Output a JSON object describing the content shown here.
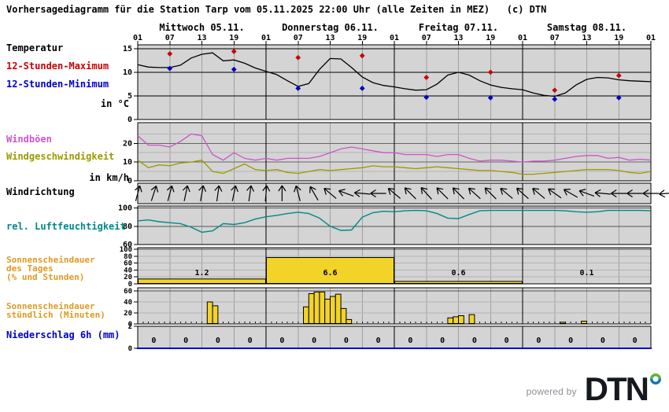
{
  "title": "Vorhersagediagramm für die Station Tarp vom 05.11.2025 22:00 Uhr (alle Zeiten in MEZ)   (c) DTN",
  "footer": {
    "powered_by": "powered by",
    "brand": "DTN"
  },
  "colors": {
    "max_red": "#cc0000",
    "min_blue": "#0000cc",
    "gusts_magenta": "#cc55cc",
    "wind_olive": "#9a9a00",
    "humidity_teal": "#008888",
    "sunshine_orange": "#dd9a22",
    "precip_blue": "#0000cc",
    "bar_yellow": "#f2d328",
    "panel_bg": "#d4d4d4",
    "grid_gray": "#a0a0a0",
    "brand_dark": "#15191e",
    "ring_green": "#5ab431",
    "ring_blue": "#0f75bb",
    "powered_gray": "#8a8f94"
  },
  "labels": {
    "temperatur": "Temperatur",
    "max": "12-Stunden-Maximum",
    "min": "12-Stunden-Minimum",
    "unit_temp": "in °C",
    "gusts": "Windböen",
    "wind": "Windgeschwindigkeit",
    "unit_wind": "in km/h",
    "winddir": "Windrichtung",
    "humidity": "rel. Luftfeuchtigkeit",
    "sun_day_1": "Sonnenscheindauer",
    "sun_day_2": "des Tages",
    "sun_day_3": "(% und Stunden)",
    "sun_hour_1": "Sonnenscheindauer",
    "sun_hour_2": "stündlich (Minuten)",
    "precip": "Niederschlag 6h (mm)"
  },
  "axis": {
    "days": [
      "Mittwoch 05.11.",
      "Donnerstag 06.11.",
      "Freitag 07.11.",
      "Samstag 08.11."
    ],
    "hour_ticks": [
      "01",
      "07",
      "13",
      "19",
      "01",
      "07",
      "13",
      "19",
      "01",
      "07",
      "13",
      "19",
      "01",
      "07",
      "13",
      "19",
      "01"
    ]
  },
  "chart_data": [
    {
      "id": "temperature",
      "type": "line",
      "title": "Temperatur",
      "unit": "°C",
      "ylim": [
        0,
        15.8
      ],
      "y_ticks": [
        15,
        10,
        5,
        0
      ],
      "x_step_hours": 2,
      "series": [
        {
          "name": "Temperatur",
          "color": "#000000",
          "values": [
            11.6,
            11.1,
            11.0,
            11.0,
            11.5,
            13.0,
            13.8,
            14.1,
            12.4,
            12.6,
            11.9,
            10.9,
            10.2,
            9.5,
            8.2,
            7.0,
            7.6,
            10.6,
            12.9,
            12.8,
            11.0,
            9.0,
            7.8,
            7.2,
            6.9,
            6.5,
            6.2,
            6.3,
            7.5,
            9.4,
            10.0,
            9.4,
            8.2,
            7.3,
            6.8,
            6.5,
            6.3,
            5.6,
            5.1,
            4.9,
            5.6,
            7.3,
            8.5,
            8.9,
            8.8,
            8.4,
            8.2,
            8.1,
            8.0
          ]
        }
      ],
      "markers": [
        {
          "name": "12-Stunden-Maximum",
          "color": "#cc0000",
          "hours": [
            6,
            18,
            30,
            42,
            54,
            66,
            78,
            90
          ],
          "values": [
            13.9,
            14.4,
            13.1,
            13.5,
            8.9,
            10.0,
            6.2,
            9.3
          ]
        },
        {
          "name": "12-Stunden-Minimum",
          "color": "#0000cc",
          "hours": [
            6,
            18,
            30,
            42,
            54,
            66,
            78,
            90
          ],
          "values": [
            10.8,
            10.6,
            6.6,
            6.6,
            4.7,
            4.6,
            4.3,
            4.6
          ]
        }
      ]
    },
    {
      "id": "wind",
      "type": "line",
      "title": "Wind",
      "unit": "km/h",
      "ylim": [
        0,
        31
      ],
      "y_ticks": [
        20,
        10,
        0
      ],
      "x_step_hours": 2,
      "series": [
        {
          "name": "Windböen",
          "color": "#cc55cc",
          "values": [
            24,
            19,
            19,
            18,
            21,
            25,
            24,
            14,
            11,
            15,
            12,
            11,
            12,
            11,
            12,
            12,
            12,
            13,
            15,
            17,
            18,
            17,
            16,
            15,
            15,
            14,
            14,
            14,
            13,
            14,
            14,
            12,
            10.5,
            11,
            11,
            10.5,
            10,
            10.5,
            10.5,
            11,
            12,
            13,
            13.5,
            13.5,
            12,
            12.5,
            11,
            11.5,
            11
          ]
        },
        {
          "name": "Windgeschwindigkeit",
          "color": "#9a9a00",
          "values": [
            11,
            7,
            8.5,
            8,
            9.5,
            10,
            11,
            5,
            4,
            6.5,
            9,
            6,
            5.5,
            6,
            4.5,
            4,
            5,
            6,
            5.5,
            6,
            6.5,
            7,
            8,
            7.5,
            7.5,
            7,
            6.5,
            7,
            7.5,
            7,
            6.5,
            6,
            5.5,
            5.5,
            5,
            4.5,
            3.5,
            3.5,
            4,
            4.5,
            5,
            5.5,
            6,
            6,
            6,
            5.5,
            4.5,
            4,
            5
          ]
        }
      ]
    },
    {
      "id": "wind_direction",
      "type": "arrows",
      "title": "Windrichtung",
      "step_hours": 3,
      "note": "arrow heading, degrees clockwise from up/north",
      "angles_deg": [
        15,
        18,
        15,
        12,
        10,
        8,
        12,
        8,
        5,
        0,
        -15,
        -30,
        -50,
        -70,
        -85,
        -90,
        -50,
        -45,
        -42,
        -45,
        -45,
        -48,
        -45,
        -50,
        -48,
        -50,
        -55,
        -60,
        -70,
        -85,
        -90,
        -90,
        -90,
        -95
      ]
    },
    {
      "id": "humidity",
      "type": "line",
      "title": "rel. Luftfeuchtigkeit",
      "unit": "%",
      "ylim": [
        60,
        102.3
      ],
      "y_ticks": [
        100,
        80,
        60
      ],
      "x_step_hours": 2,
      "series": [
        {
          "name": "rel. Luftfeuchtigkeit",
          "color": "#008888",
          "values": [
            86,
            87,
            85,
            84,
            83,
            79,
            73.5,
            75,
            83,
            82,
            84,
            88,
            90.5,
            92,
            94,
            95.5,
            94,
            89,
            80,
            75.5,
            76,
            90,
            95,
            96.5,
            96,
            97,
            97.5,
            97,
            94,
            89,
            88.5,
            93,
            97,
            97.5,
            97.5,
            97.5,
            97.5,
            97.5,
            97.5,
            97.5,
            97,
            96,
            95.5,
            96,
            97.5,
            97.5,
            97.5,
            97.5,
            97
          ]
        }
      ]
    },
    {
      "id": "sunshine_daily",
      "type": "bar",
      "title": "Sonnenscheindauer des Tages",
      "unit": "% und Stunden",
      "ylim": [
        0,
        104.5
      ],
      "y_ticks": [
        100,
        80,
        60,
        40,
        20,
        0
      ],
      "bar_color": "#f2d328",
      "days": [
        {
          "hours_label": "1.2",
          "percent": 14
        },
        {
          "hours_label": "6.6",
          "percent": 76
        },
        {
          "hours_label": "0.6",
          "percent": 7
        },
        {
          "hours_label": "0.1",
          "percent": 1
        }
      ]
    },
    {
      "id": "sunshine_hourly",
      "type": "bar",
      "title": "Sonnenscheindauer stündlich",
      "unit": "Minuten",
      "ylim": [
        0,
        65.7
      ],
      "y_ticks": [
        60,
        40,
        20,
        0
      ],
      "bar_color": "#f2d328",
      "bars": [
        {
          "start_hour": 13,
          "minutes": 40
        },
        {
          "start_hour": 14,
          "minutes": 33
        },
        {
          "start_hour": 31,
          "minutes": 31
        },
        {
          "start_hour": 32,
          "minutes": 55
        },
        {
          "start_hour": 33,
          "minutes": 58
        },
        {
          "start_hour": 34,
          "minutes": 58
        },
        {
          "start_hour": 35,
          "minutes": 45
        },
        {
          "start_hour": 36,
          "minutes": 50
        },
        {
          "start_hour": 37,
          "minutes": 54
        },
        {
          "start_hour": 38,
          "minutes": 28
        },
        {
          "start_hour": 39,
          "minutes": 8
        },
        {
          "start_hour": 58,
          "minutes": 11
        },
        {
          "start_hour": 59,
          "minutes": 13
        },
        {
          "start_hour": 60,
          "minutes": 15
        },
        {
          "start_hour": 62,
          "minutes": 17
        },
        {
          "start_hour": 79,
          "minutes": 3
        },
        {
          "start_hour": 83,
          "minutes": 5
        }
      ]
    },
    {
      "id": "precipitation_6h",
      "type": "table",
      "title": "Niederschlag 6h",
      "unit": "mm",
      "ylim": [
        0,
        2
      ],
      "y_ticks": [
        2,
        0
      ],
      "interval_hours": 6,
      "values": [
        "0",
        "0",
        "0",
        "0",
        "0",
        "0",
        "0",
        "0",
        "0",
        "0",
        "0",
        "0",
        "0",
        "0",
        "0",
        "0"
      ]
    }
  ]
}
